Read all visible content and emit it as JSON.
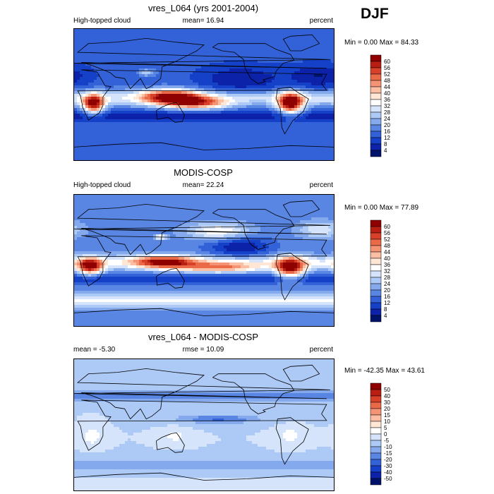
{
  "season": "DJF",
  "panels": [
    {
      "title": "vres_L064 (yrs 2001-2004)",
      "left_label": "High-topped cloud",
      "center_label": "mean=  16.94",
      "right_label": "percent",
      "minmax": "Min =   0.00 Max =  84.33",
      "colorbar": {
        "labels": [
          "60",
          "56",
          "52",
          "48",
          "44",
          "40",
          "36",
          "32",
          "28",
          "24",
          "20",
          "16",
          "12",
          "8",
          "4"
        ],
        "colors": [
          "#8f0000",
          "#b81e12",
          "#d8402a",
          "#ea6a48",
          "#f59475",
          "#fbbea3",
          "#ffe6d5",
          "#ffffff",
          "#d5e4fb",
          "#adc9f5",
          "#84a9ec",
          "#5a86e3",
          "#3362d8",
          "#1540c8",
          "#0c22a8",
          "#00136a"
        ]
      }
    },
    {
      "title": "MODIS-COSP",
      "left_label": "High-topped cloud",
      "center_label": "mean=  22.24",
      "right_label": "percent",
      "minmax": "Min =   0.00 Max =  77.89",
      "colorbar": {
        "labels": [
          "60",
          "56",
          "52",
          "48",
          "44",
          "40",
          "36",
          "32",
          "28",
          "24",
          "20",
          "16",
          "12",
          "8",
          "4"
        ],
        "colors": [
          "#8f0000",
          "#b81e12",
          "#d8402a",
          "#ea6a48",
          "#f59475",
          "#fbbea3",
          "#ffe6d5",
          "#ffffff",
          "#d5e4fb",
          "#adc9f5",
          "#84a9ec",
          "#5a86e3",
          "#3362d8",
          "#1540c8",
          "#0c22a8",
          "#00136a"
        ]
      }
    },
    {
      "title": "vres_L064 - MODIS-COSP",
      "left_label": "mean =  -5.30",
      "center_label": "rmse =  10.09",
      "right_label": "percent",
      "minmax": "Min = -42.35 Max =  43.61",
      "colorbar": {
        "labels": [
          "50",
          "40",
          "30",
          "20",
          "15",
          "10",
          "5",
          "0",
          "-5",
          "-10",
          "-15",
          "-20",
          "-30",
          "-40",
          "-50"
        ],
        "colors": [
          "#8f0000",
          "#b81e12",
          "#d8402a",
          "#ea6a48",
          "#f59475",
          "#fbbea3",
          "#ffe6d5",
          "#ffffff",
          "#d5e4fb",
          "#adc9f5",
          "#84a9ec",
          "#5a86e3",
          "#3362d8",
          "#1540c8",
          "#0c22a8",
          "#00136a"
        ]
      }
    }
  ]
}
